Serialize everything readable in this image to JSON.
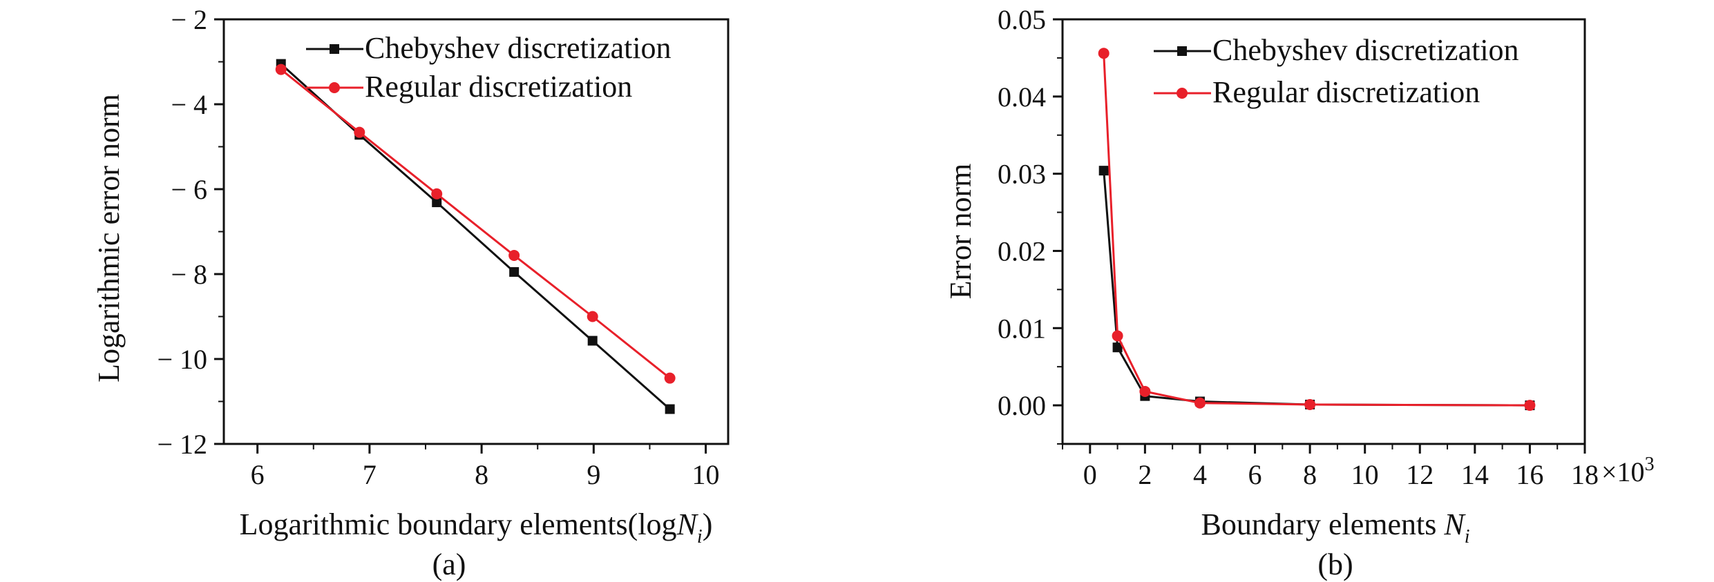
{
  "colors": {
    "chebyshev": "#111111",
    "regular": "#e8202a",
    "axis": "#111111"
  },
  "chart_data": [
    {
      "type": "line",
      "panel_label": "(a)",
      "xlabel_prefix": "Logarithmic boundary elements(log",
      "xlabel_var": "N",
      "xlabel_sub": "i",
      "xlabel_suffix": ")",
      "ylabel": "Logarithmic error norm",
      "xlim": [
        5.7,
        10.2
      ],
      "ylim": [
        -12,
        -2
      ],
      "xticks": [
        6,
        7,
        8,
        9,
        10
      ],
      "xtick_labels": [
        "6",
        "7",
        "8",
        "9",
        "10"
      ],
      "yticks": [
        -2,
        -4,
        -6,
        -8,
        -10,
        -12
      ],
      "ytick_labels": [
        "− 2",
        "− 4",
        "− 6",
        "− 8",
        "− 10",
        "− 12"
      ],
      "legend_position": "top-right",
      "grid": false,
      "series": [
        {
          "name": "Chebyshev discretization",
          "marker": "square",
          "color": "#111111",
          "x": [
            6.21,
            6.91,
            7.6,
            8.29,
            8.99,
            9.68
          ],
          "y": [
            -3.05,
            -4.72,
            -6.31,
            -7.95,
            -9.57,
            -11.18
          ]
        },
        {
          "name": "Regular discretization",
          "marker": "circle",
          "color": "#e8202a",
          "x": [
            6.21,
            6.91,
            7.6,
            8.29,
            8.99,
            9.68
          ],
          "y": [
            -3.18,
            -4.66,
            -6.11,
            -7.56,
            -9.0,
            -10.45
          ]
        }
      ]
    },
    {
      "type": "line",
      "panel_label": "(b)",
      "xlabel_prefix": "Boundary elements ",
      "xlabel_var": "N",
      "xlabel_sub": "i",
      "xlabel_suffix": "",
      "ylabel": "Error  norm",
      "x_multiplier_base": "×10",
      "x_multiplier_exp": "3",
      "xlim": [
        -1,
        18
      ],
      "ylim": [
        -0.005,
        0.05
      ],
      "xticks": [
        0,
        2,
        4,
        6,
        8,
        10,
        12,
        14,
        16,
        18
      ],
      "xtick_labels": [
        "0",
        "2",
        "4",
        "6",
        "8",
        "10",
        "12",
        "14",
        "16",
        "18"
      ],
      "yticks": [
        0.0,
        0.01,
        0.02,
        0.03,
        0.04,
        0.05
      ],
      "ytick_labels": [
        "0.00",
        "0.01",
        "0.02",
        "0.03",
        "0.04",
        "0.05"
      ],
      "legend_position": "top-right",
      "grid": false,
      "series": [
        {
          "name": "Chebyshev discretization",
          "marker": "square",
          "color": "#111111",
          "x": [
            0.5,
            1,
            2,
            4,
            8,
            16
          ],
          "y": [
            0.0304,
            0.0075,
            0.0012,
            0.0005,
            0.0001,
            0.0
          ]
        },
        {
          "name": "Regular discretization",
          "marker": "circle",
          "color": "#e8202a",
          "x": [
            0.5,
            1,
            2,
            4,
            8,
            16
          ],
          "y": [
            0.0456,
            0.009,
            0.0018,
            0.0003,
            0.0001,
            0.0
          ]
        }
      ]
    }
  ]
}
